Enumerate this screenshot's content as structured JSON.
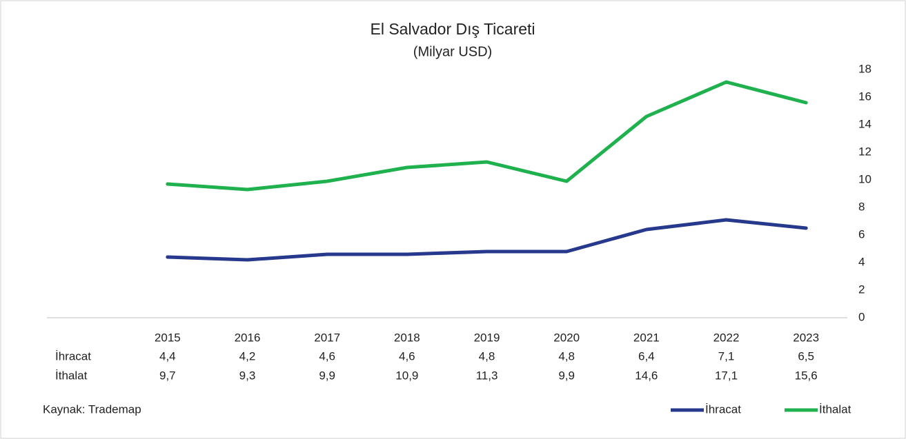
{
  "chart_data": {
    "type": "line",
    "title": "El Salvador Dış Ticareti",
    "subtitle": "(Milyar USD)",
    "categories": [
      "2015",
      "2016",
      "2017",
      "2018",
      "2019",
      "2020",
      "2021",
      "2022",
      "2023"
    ],
    "series": [
      {
        "name": "İhracat",
        "color": "#26398d",
        "values": [
          4.4,
          4.2,
          4.6,
          4.6,
          4.8,
          4.8,
          6.4,
          7.1,
          6.5
        ],
        "value_labels": [
          "4,4",
          "4,2",
          "4,6",
          "4,6",
          "4,8",
          "4,8",
          "6,4",
          "7,1",
          "6,5"
        ]
      },
      {
        "name": "İthalat",
        "color": "#1fb14e",
        "values": [
          9.7,
          9.3,
          9.9,
          10.9,
          11.3,
          9.9,
          14.6,
          17.1,
          15.6
        ],
        "value_labels": [
          "9,7",
          "9,3",
          "9,9",
          "10,9",
          "11,3",
          "9,9",
          "14,6",
          "17,1",
          "15,6"
        ]
      }
    ],
    "ylim": [
      0,
      18
    ],
    "yticks": [
      0,
      2,
      4,
      6,
      8,
      10,
      12,
      14,
      16,
      18
    ],
    "y_axis_side": "right",
    "source": "Kaynak: Trademap"
  }
}
